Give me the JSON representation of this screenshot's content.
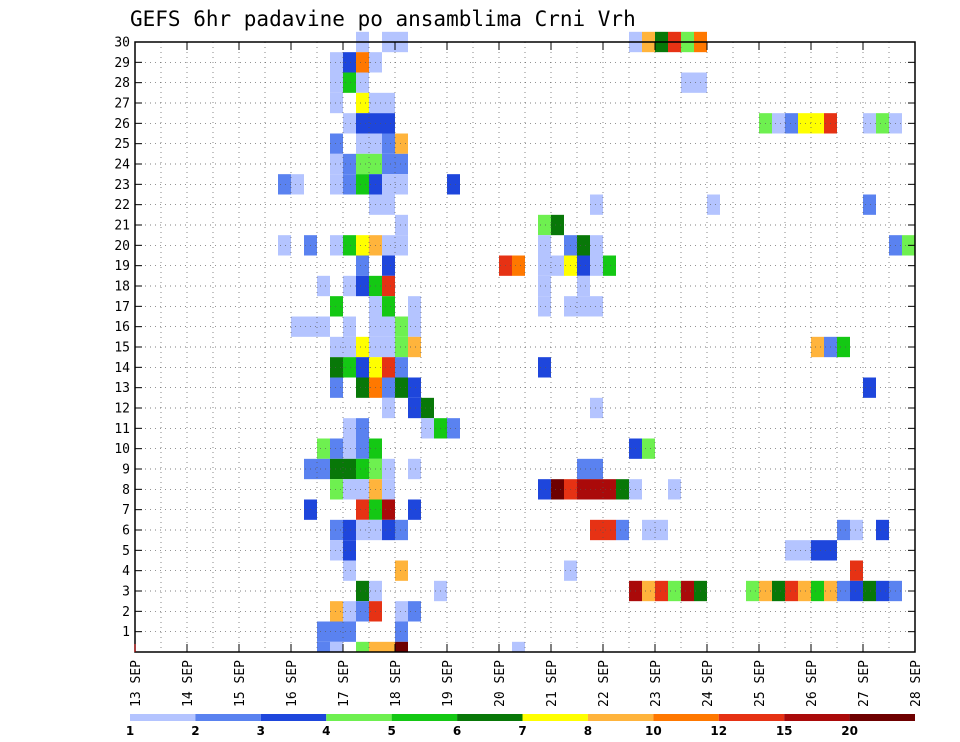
{
  "chart_data": {
    "type": "heatmap",
    "title": "GEFS 6hr padavine po ansamblima Crni Vrh",
    "xlabel": "",
    "ylabel": "",
    "x_tick_labels": [
      "13 SEP",
      "14 SEP",
      "15 SEP",
      "16 SEP",
      "17 SEP",
      "18 SEP",
      "19 SEP",
      "20 SEP",
      "21 SEP",
      "22 SEP",
      "23 SEP",
      "24 SEP",
      "25 SEP",
      "26 SEP",
      "27 SEP",
      "28 SEP"
    ],
    "y_tick_labels": [
      "1",
      "2",
      "3",
      "4",
      "5",
      "6",
      "7",
      "8",
      "9",
      "10",
      "11",
      "12",
      "13",
      "14",
      "15",
      "16",
      "17",
      "18",
      "19",
      "20",
      "21",
      "22",
      "23",
      "24",
      "25",
      "26",
      "27",
      "28",
      "29",
      "30"
    ],
    "x_range_days": [
      13,
      28
    ],
    "y_range": [
      0,
      30
    ],
    "timestep_hours": 6,
    "grid": "dotted",
    "legend": {
      "placement": "bottom",
      "labels": [
        "1",
        "2",
        "3",
        "4",
        "5",
        "6",
        "7",
        "8",
        "10",
        "12",
        "15",
        "20"
      ],
      "colors": [
        "#b4c4ff",
        "#5a82f0",
        "#1e46dc",
        "#6ef050",
        "#14c814",
        "#087808",
        "#ffff00",
        "#ffb43c",
        "#ff7800",
        "#e63214",
        "#aa0a0a",
        "#6e0000"
      ]
    },
    "cells": [
      {
        "member": 30,
        "day": 17.25,
        "cat": 1
      },
      {
        "member": 30,
        "day": 17.75,
        "cat": 1
      },
      {
        "member": 30,
        "day": 18,
        "cat": 1
      },
      {
        "member": 30,
        "day": 22.5,
        "cat": 1
      },
      {
        "member": 30,
        "day": 22.75,
        "cat": 8
      },
      {
        "member": 30,
        "day": 23,
        "cat": 6
      },
      {
        "member": 30,
        "day": 23.25,
        "cat": 10
      },
      {
        "member": 30,
        "day": 23.5,
        "cat": 4
      },
      {
        "member": 30,
        "day": 23.75,
        "cat": 9
      },
      {
        "member": 29,
        "day": 16.75,
        "cat": 1
      },
      {
        "member": 29,
        "day": 17,
        "cat": 3
      },
      {
        "member": 29,
        "day": 17.25,
        "cat": 9
      },
      {
        "member": 29,
        "day": 17.5,
        "cat": 1
      },
      {
        "member": 28,
        "day": 16.75,
        "cat": 1
      },
      {
        "member": 28,
        "day": 17,
        "cat": 5
      },
      {
        "member": 28,
        "day": 17.25,
        "cat": 1
      },
      {
        "member": 28,
        "day": 23.5,
        "cat": 1
      },
      {
        "member": 28,
        "day": 23.75,
        "cat": 1
      },
      {
        "member": 27,
        "day": 16.75,
        "cat": 1
      },
      {
        "member": 27,
        "day": 17.25,
        "cat": 7
      },
      {
        "member": 27,
        "day": 17.5,
        "cat": 1
      },
      {
        "member": 27,
        "day": 17.75,
        "cat": 1
      },
      {
        "member": 26,
        "day": 17,
        "cat": 1
      },
      {
        "member": 26,
        "day": 17.25,
        "cat": 3
      },
      {
        "member": 26,
        "day": 17.5,
        "cat": 3
      },
      {
        "member": 26,
        "day": 17.75,
        "cat": 3
      },
      {
        "member": 26,
        "day": 25,
        "cat": 4
      },
      {
        "member": 26,
        "day": 25.25,
        "cat": 1
      },
      {
        "member": 26,
        "day": 25.5,
        "cat": 2
      },
      {
        "member": 26,
        "day": 25.75,
        "cat": 7
      },
      {
        "member": 26,
        "day": 26,
        "cat": 7
      },
      {
        "member": 26,
        "day": 26.25,
        "cat": 10
      },
      {
        "member": 26,
        "day": 27,
        "cat": 1
      },
      {
        "member": 26,
        "day": 27.25,
        "cat": 4
      },
      {
        "member": 26,
        "day": 27.5,
        "cat": 1
      },
      {
        "member": 25,
        "day": 16.75,
        "cat": 2
      },
      {
        "member": 25,
        "day": 17.25,
        "cat": 1
      },
      {
        "member": 25,
        "day": 17.5,
        "cat": 1
      },
      {
        "member": 25,
        "day": 17.75,
        "cat": 2
      },
      {
        "member": 25,
        "day": 18,
        "cat": 8
      },
      {
        "member": 24,
        "day": 16.75,
        "cat": 1
      },
      {
        "member": 24,
        "day": 17,
        "cat": 2
      },
      {
        "member": 24,
        "day": 17.25,
        "cat": 4
      },
      {
        "member": 24,
        "day": 17.5,
        "cat": 4
      },
      {
        "member": 24,
        "day": 17.75,
        "cat": 2
      },
      {
        "member": 24,
        "day": 18,
        "cat": 2
      },
      {
        "member": 23,
        "day": 15.75,
        "cat": 2
      },
      {
        "member": 23,
        "day": 16,
        "cat": 1
      },
      {
        "member": 23,
        "day": 16.75,
        "cat": 1
      },
      {
        "member": 23,
        "day": 17,
        "cat": 2
      },
      {
        "member": 23,
        "day": 17.25,
        "cat": 5
      },
      {
        "member": 23,
        "day": 17.5,
        "cat": 3
      },
      {
        "member": 23,
        "day": 17.75,
        "cat": 1
      },
      {
        "member": 23,
        "day": 18,
        "cat": 1
      },
      {
        "member": 23,
        "day": 19,
        "cat": 3
      },
      {
        "member": 22,
        "day": 17.5,
        "cat": 1
      },
      {
        "member": 22,
        "day": 17.75,
        "cat": 1
      },
      {
        "member": 22,
        "day": 21.75,
        "cat": 1
      },
      {
        "member": 22,
        "day": 24,
        "cat": 1
      },
      {
        "member": 22,
        "day": 27,
        "cat": 2
      },
      {
        "member": 21,
        "day": 18,
        "cat": 1
      },
      {
        "member": 21,
        "day": 20.75,
        "cat": 4
      },
      {
        "member": 21,
        "day": 21,
        "cat": 6
      },
      {
        "member": 20,
        "day": 15.75,
        "cat": 1
      },
      {
        "member": 20,
        "day": 16.25,
        "cat": 2
      },
      {
        "member": 20,
        "day": 16.75,
        "cat": 1
      },
      {
        "member": 20,
        "day": 17,
        "cat": 5
      },
      {
        "member": 20,
        "day": 17.25,
        "cat": 7
      },
      {
        "member": 20,
        "day": 17.5,
        "cat": 8
      },
      {
        "member": 20,
        "day": 17.75,
        "cat": 1
      },
      {
        "member": 20,
        "day": 18,
        "cat": 1
      },
      {
        "member": 20,
        "day": 20.75,
        "cat": 1
      },
      {
        "member": 20,
        "day": 21.25,
        "cat": 2
      },
      {
        "member": 20,
        "day": 21.5,
        "cat": 6
      },
      {
        "member": 20,
        "day": 21.75,
        "cat": 1
      },
      {
        "member": 20,
        "day": 27.5,
        "cat": 2
      },
      {
        "member": 20,
        "day": 27.75,
        "cat": 4
      },
      {
        "member": 19,
        "day": 17.25,
        "cat": 2
      },
      {
        "member": 19,
        "day": 17.75,
        "cat": 3
      },
      {
        "member": 19,
        "day": 20,
        "cat": 10
      },
      {
        "member": 19,
        "day": 20.25,
        "cat": 9
      },
      {
        "member": 19,
        "day": 20.75,
        "cat": 1
      },
      {
        "member": 19,
        "day": 21,
        "cat": 1
      },
      {
        "member": 19,
        "day": 21.25,
        "cat": 7
      },
      {
        "member": 19,
        "day": 21.5,
        "cat": 3
      },
      {
        "member": 19,
        "day": 21.75,
        "cat": 1
      },
      {
        "member": 19,
        "day": 22,
        "cat": 5
      },
      {
        "member": 18,
        "day": 16.5,
        "cat": 1
      },
      {
        "member": 18,
        "day": 17,
        "cat": 1
      },
      {
        "member": 18,
        "day": 17.25,
        "cat": 3
      },
      {
        "member": 18,
        "day": 17.5,
        "cat": 5
      },
      {
        "member": 18,
        "day": 17.75,
        "cat": 10
      },
      {
        "member": 18,
        "day": 20.75,
        "cat": 1
      },
      {
        "member": 18,
        "day": 21.5,
        "cat": 1
      },
      {
        "member": 17,
        "day": 16.75,
        "cat": 5
      },
      {
        "member": 17,
        "day": 17.5,
        "cat": 1
      },
      {
        "member": 17,
        "day": 17.75,
        "cat": 5
      },
      {
        "member": 17,
        "day": 18.25,
        "cat": 1
      },
      {
        "member": 17,
        "day": 20.75,
        "cat": 1
      },
      {
        "member": 17,
        "day": 21.25,
        "cat": 1
      },
      {
        "member": 17,
        "day": 21.5,
        "cat": 1
      },
      {
        "member": 17,
        "day": 21.75,
        "cat": 1
      },
      {
        "member": 16,
        "day": 16,
        "cat": 1
      },
      {
        "member": 16,
        "day": 16.25,
        "cat": 1
      },
      {
        "member": 16,
        "day": 16.5,
        "cat": 1
      },
      {
        "member": 16,
        "day": 17,
        "cat": 1
      },
      {
        "member": 16,
        "day": 17.5,
        "cat": 1
      },
      {
        "member": 16,
        "day": 17.75,
        "cat": 1
      },
      {
        "member": 16,
        "day": 18,
        "cat": 4
      },
      {
        "member": 16,
        "day": 18.25,
        "cat": 1
      },
      {
        "member": 15,
        "day": 16.75,
        "cat": 1
      },
      {
        "member": 15,
        "day": 17,
        "cat": 1
      },
      {
        "member": 15,
        "day": 17.25,
        "cat": 7
      },
      {
        "member": 15,
        "day": 17.5,
        "cat": 1
      },
      {
        "member": 15,
        "day": 17.75,
        "cat": 1
      },
      {
        "member": 15,
        "day": 18,
        "cat": 4
      },
      {
        "member": 15,
        "day": 18.25,
        "cat": 8
      },
      {
        "member": 15,
        "day": 26,
        "cat": 8
      },
      {
        "member": 15,
        "day": 26.25,
        "cat": 2
      },
      {
        "member": 15,
        "day": 26.5,
        "cat": 5
      },
      {
        "member": 14,
        "day": 16.75,
        "cat": 6
      },
      {
        "member": 14,
        "day": 17,
        "cat": 5
      },
      {
        "member": 14,
        "day": 17.25,
        "cat": 3
      },
      {
        "member": 14,
        "day": 17.5,
        "cat": 7
      },
      {
        "member": 14,
        "day": 17.75,
        "cat": 10
      },
      {
        "member": 14,
        "day": 18,
        "cat": 2
      },
      {
        "member": 14,
        "day": 20.75,
        "cat": 3
      },
      {
        "member": 13,
        "day": 16.75,
        "cat": 2
      },
      {
        "member": 13,
        "day": 17.25,
        "cat": 6
      },
      {
        "member": 13,
        "day": 17.5,
        "cat": 9
      },
      {
        "member": 13,
        "day": 17.75,
        "cat": 2
      },
      {
        "member": 13,
        "day": 18,
        "cat": 6
      },
      {
        "member": 13,
        "day": 18.25,
        "cat": 3
      },
      {
        "member": 13,
        "day": 27,
        "cat": 3
      },
      {
        "member": 12,
        "day": 17.75,
        "cat": 1
      },
      {
        "member": 12,
        "day": 18.25,
        "cat": 3
      },
      {
        "member": 12,
        "day": 18.5,
        "cat": 6
      },
      {
        "member": 12,
        "day": 21.75,
        "cat": 1
      },
      {
        "member": 11,
        "day": 17,
        "cat": 1
      },
      {
        "member": 11,
        "day": 17.25,
        "cat": 2
      },
      {
        "member": 11,
        "day": 18.75,
        "cat": 5
      },
      {
        "member": 11,
        "day": 19,
        "cat": 2
      },
      {
        "member": 11,
        "day": 18.5,
        "cat": 1
      },
      {
        "member": 10,
        "day": 16.5,
        "cat": 4
      },
      {
        "member": 10,
        "day": 16.75,
        "cat": 2
      },
      {
        "member": 10,
        "day": 17,
        "cat": 1
      },
      {
        "member": 10,
        "day": 17.25,
        "cat": 2
      },
      {
        "member": 10,
        "day": 17.5,
        "cat": 5
      },
      {
        "member": 10,
        "day": 22.5,
        "cat": 3
      },
      {
        "member": 10,
        "day": 22.75,
        "cat": 4
      },
      {
        "member": 9,
        "day": 16.25,
        "cat": 2
      },
      {
        "member": 9,
        "day": 16.5,
        "cat": 2
      },
      {
        "member": 9,
        "day": 16.75,
        "cat": 6
      },
      {
        "member": 9,
        "day": 17,
        "cat": 6
      },
      {
        "member": 9,
        "day": 17.25,
        "cat": 5
      },
      {
        "member": 9,
        "day": 17.5,
        "cat": 4
      },
      {
        "member": 9,
        "day": 17.75,
        "cat": 1
      },
      {
        "member": 9,
        "day": 18.25,
        "cat": 1
      },
      {
        "member": 9,
        "day": 21.5,
        "cat": 2
      },
      {
        "member": 9,
        "day": 21.75,
        "cat": 2
      },
      {
        "member": 8,
        "day": 16.75,
        "cat": 4
      },
      {
        "member": 8,
        "day": 17,
        "cat": 1
      },
      {
        "member": 8,
        "day": 17.25,
        "cat": 1
      },
      {
        "member": 8,
        "day": 17.5,
        "cat": 8
      },
      {
        "member": 8,
        "day": 17.75,
        "cat": 1
      },
      {
        "member": 8,
        "day": 20.75,
        "cat": 3
      },
      {
        "member": 8,
        "day": 21,
        "cat": 12
      },
      {
        "member": 8,
        "day": 21.25,
        "cat": 10
      },
      {
        "member": 8,
        "day": 21.5,
        "cat": 11
      },
      {
        "member": 8,
        "day": 21.75,
        "cat": 11
      },
      {
        "member": 8,
        "day": 22,
        "cat": 11
      },
      {
        "member": 8,
        "day": 22.25,
        "cat": 6
      },
      {
        "member": 8,
        "day": 22.5,
        "cat": 1
      },
      {
        "member": 8,
        "day": 23.25,
        "cat": 1
      },
      {
        "member": 7,
        "day": 16.25,
        "cat": 3
      },
      {
        "member": 7,
        "day": 17.25,
        "cat": 10
      },
      {
        "member": 7,
        "day": 17.5,
        "cat": 5
      },
      {
        "member": 7,
        "day": 17.75,
        "cat": 11
      },
      {
        "member": 7,
        "day": 18.25,
        "cat": 3
      },
      {
        "member": 6,
        "day": 16.75,
        "cat": 2
      },
      {
        "member": 6,
        "day": 17,
        "cat": 3
      },
      {
        "member": 6,
        "day": 17.25,
        "cat": 1
      },
      {
        "member": 6,
        "day": 17.5,
        "cat": 1
      },
      {
        "member": 6,
        "day": 17.75,
        "cat": 3
      },
      {
        "member": 6,
        "day": 18,
        "cat": 2
      },
      {
        "member": 6,
        "day": 21.75,
        "cat": 10
      },
      {
        "member": 6,
        "day": 22,
        "cat": 10
      },
      {
        "member": 6,
        "day": 22.25,
        "cat": 2
      },
      {
        "member": 6,
        "day": 22.75,
        "cat": 1
      },
      {
        "member": 6,
        "day": 23,
        "cat": 1
      },
      {
        "member": 6,
        "day": 26.5,
        "cat": 2
      },
      {
        "member": 6,
        "day": 26.75,
        "cat": 1
      },
      {
        "member": 6,
        "day": 27.25,
        "cat": 3
      },
      {
        "member": 5,
        "day": 16.75,
        "cat": 1
      },
      {
        "member": 5,
        "day": 17,
        "cat": 3
      },
      {
        "member": 5,
        "day": 25.5,
        "cat": 1
      },
      {
        "member": 5,
        "day": 25.75,
        "cat": 1
      },
      {
        "member": 5,
        "day": 26,
        "cat": 3
      },
      {
        "member": 5,
        "day": 26.25,
        "cat": 3
      },
      {
        "member": 4,
        "day": 17,
        "cat": 1
      },
      {
        "member": 4,
        "day": 18,
        "cat": 8
      },
      {
        "member": 4,
        "day": 21.25,
        "cat": 1
      },
      {
        "member": 4,
        "day": 26.75,
        "cat": 10
      },
      {
        "member": 3,
        "day": 17.25,
        "cat": 6
      },
      {
        "member": 3,
        "day": 17.5,
        "cat": 1
      },
      {
        "member": 3,
        "day": 18.75,
        "cat": 1
      },
      {
        "member": 3,
        "day": 22.5,
        "cat": 11
      },
      {
        "member": 3,
        "day": 22.75,
        "cat": 8
      },
      {
        "member": 3,
        "day": 23,
        "cat": 10
      },
      {
        "member": 3,
        "day": 23.25,
        "cat": 4
      },
      {
        "member": 3,
        "day": 23.5,
        "cat": 11
      },
      {
        "member": 3,
        "day": 23.75,
        "cat": 6
      },
      {
        "member": 3,
        "day": 24.75,
        "cat": 4
      },
      {
        "member": 3,
        "day": 25,
        "cat": 8
      },
      {
        "member": 3,
        "day": 25.25,
        "cat": 6
      },
      {
        "member": 3,
        "day": 25.5,
        "cat": 10
      },
      {
        "member": 3,
        "day": 25.75,
        "cat": 8
      },
      {
        "member": 3,
        "day": 26,
        "cat": 5
      },
      {
        "member": 3,
        "day": 26.25,
        "cat": 8
      },
      {
        "member": 3,
        "day": 26.5,
        "cat": 2
      },
      {
        "member": 3,
        "day": 26.75,
        "cat": 3
      },
      {
        "member": 3,
        "day": 27,
        "cat": 6
      },
      {
        "member": 3,
        "day": 27.25,
        "cat": 3
      },
      {
        "member": 3,
        "day": 27.5,
        "cat": 2
      },
      {
        "member": 2,
        "day": 16.75,
        "cat": 8
      },
      {
        "member": 2,
        "day": 17,
        "cat": 1
      },
      {
        "member": 2,
        "day": 17.25,
        "cat": 2
      },
      {
        "member": 2,
        "day": 17.5,
        "cat": 10
      },
      {
        "member": 2,
        "day": 18,
        "cat": 1
      },
      {
        "member": 2,
        "day": 18.25,
        "cat": 2
      },
      {
        "member": 1,
        "day": 16.5,
        "cat": 2
      },
      {
        "member": 1,
        "day": 16.75,
        "cat": 2
      },
      {
        "member": 1,
        "day": 17,
        "cat": 2
      },
      {
        "member": 1,
        "day": 18,
        "cat": 2
      },
      {
        "member": 0,
        "day": 16.5,
        "cat": 2
      },
      {
        "member": 0,
        "day": 16.75,
        "cat": 1
      },
      {
        "member": 0,
        "day": 17.25,
        "cat": 4
      },
      {
        "member": 0,
        "day": 17.5,
        "cat": 8
      },
      {
        "member": 0,
        "day": 17.75,
        "cat": 8
      },
      {
        "member": 0,
        "day": 18,
        "cat": 12
      },
      {
        "member": 0,
        "day": 20.25,
        "cat": 1
      }
    ]
  }
}
